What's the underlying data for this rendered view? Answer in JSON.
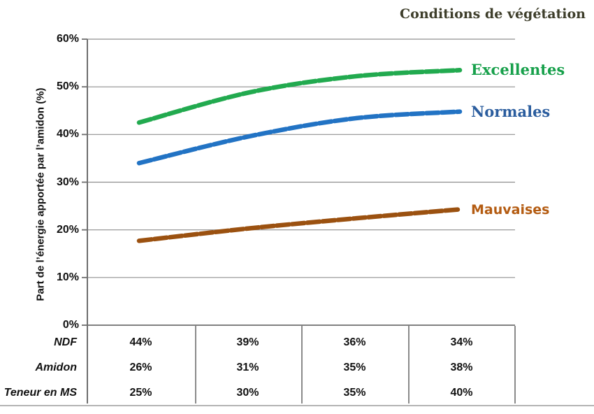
{
  "chart_data": {
    "type": "line",
    "title": "Conditions de végétation",
    "ylabel": "Part de l’énergie apportée par l’amidon (%)",
    "ylim": [
      0,
      60
    ],
    "yticks": [
      "60%",
      "50%",
      "40%",
      "30%",
      "20%",
      "10%",
      "0%"
    ],
    "grid": true,
    "legend_position": "right-of-line-ends",
    "series": [
      {
        "name": "Excellentes",
        "color": "#22aa4f",
        "label_color": "#17a04b",
        "values": [
          42.5,
          48.8,
          52.2,
          53.5
        ]
      },
      {
        "name": "Normales",
        "color": "#2273c4",
        "label_color": "#2b5d9e",
        "values": [
          34.0,
          39.6,
          43.4,
          44.8
        ]
      },
      {
        "name": "Mauvaises",
        "color": "#9b5110",
        "label_color": "#b45c12",
        "values": [
          17.7,
          20.3,
          22.4,
          24.3
        ]
      }
    ],
    "x_axis_table": {
      "rows": [
        {
          "label": "NDF",
          "values": [
            "44%",
            "39%",
            "36%",
            "34%"
          ]
        },
        {
          "label": "Amidon",
          "values": [
            "26%",
            "31%",
            "35%",
            "38%"
          ]
        },
        {
          "label": "Teneur en MS",
          "values": [
            "25%",
            "30%",
            "35%",
            "40%"
          ]
        }
      ]
    }
  }
}
